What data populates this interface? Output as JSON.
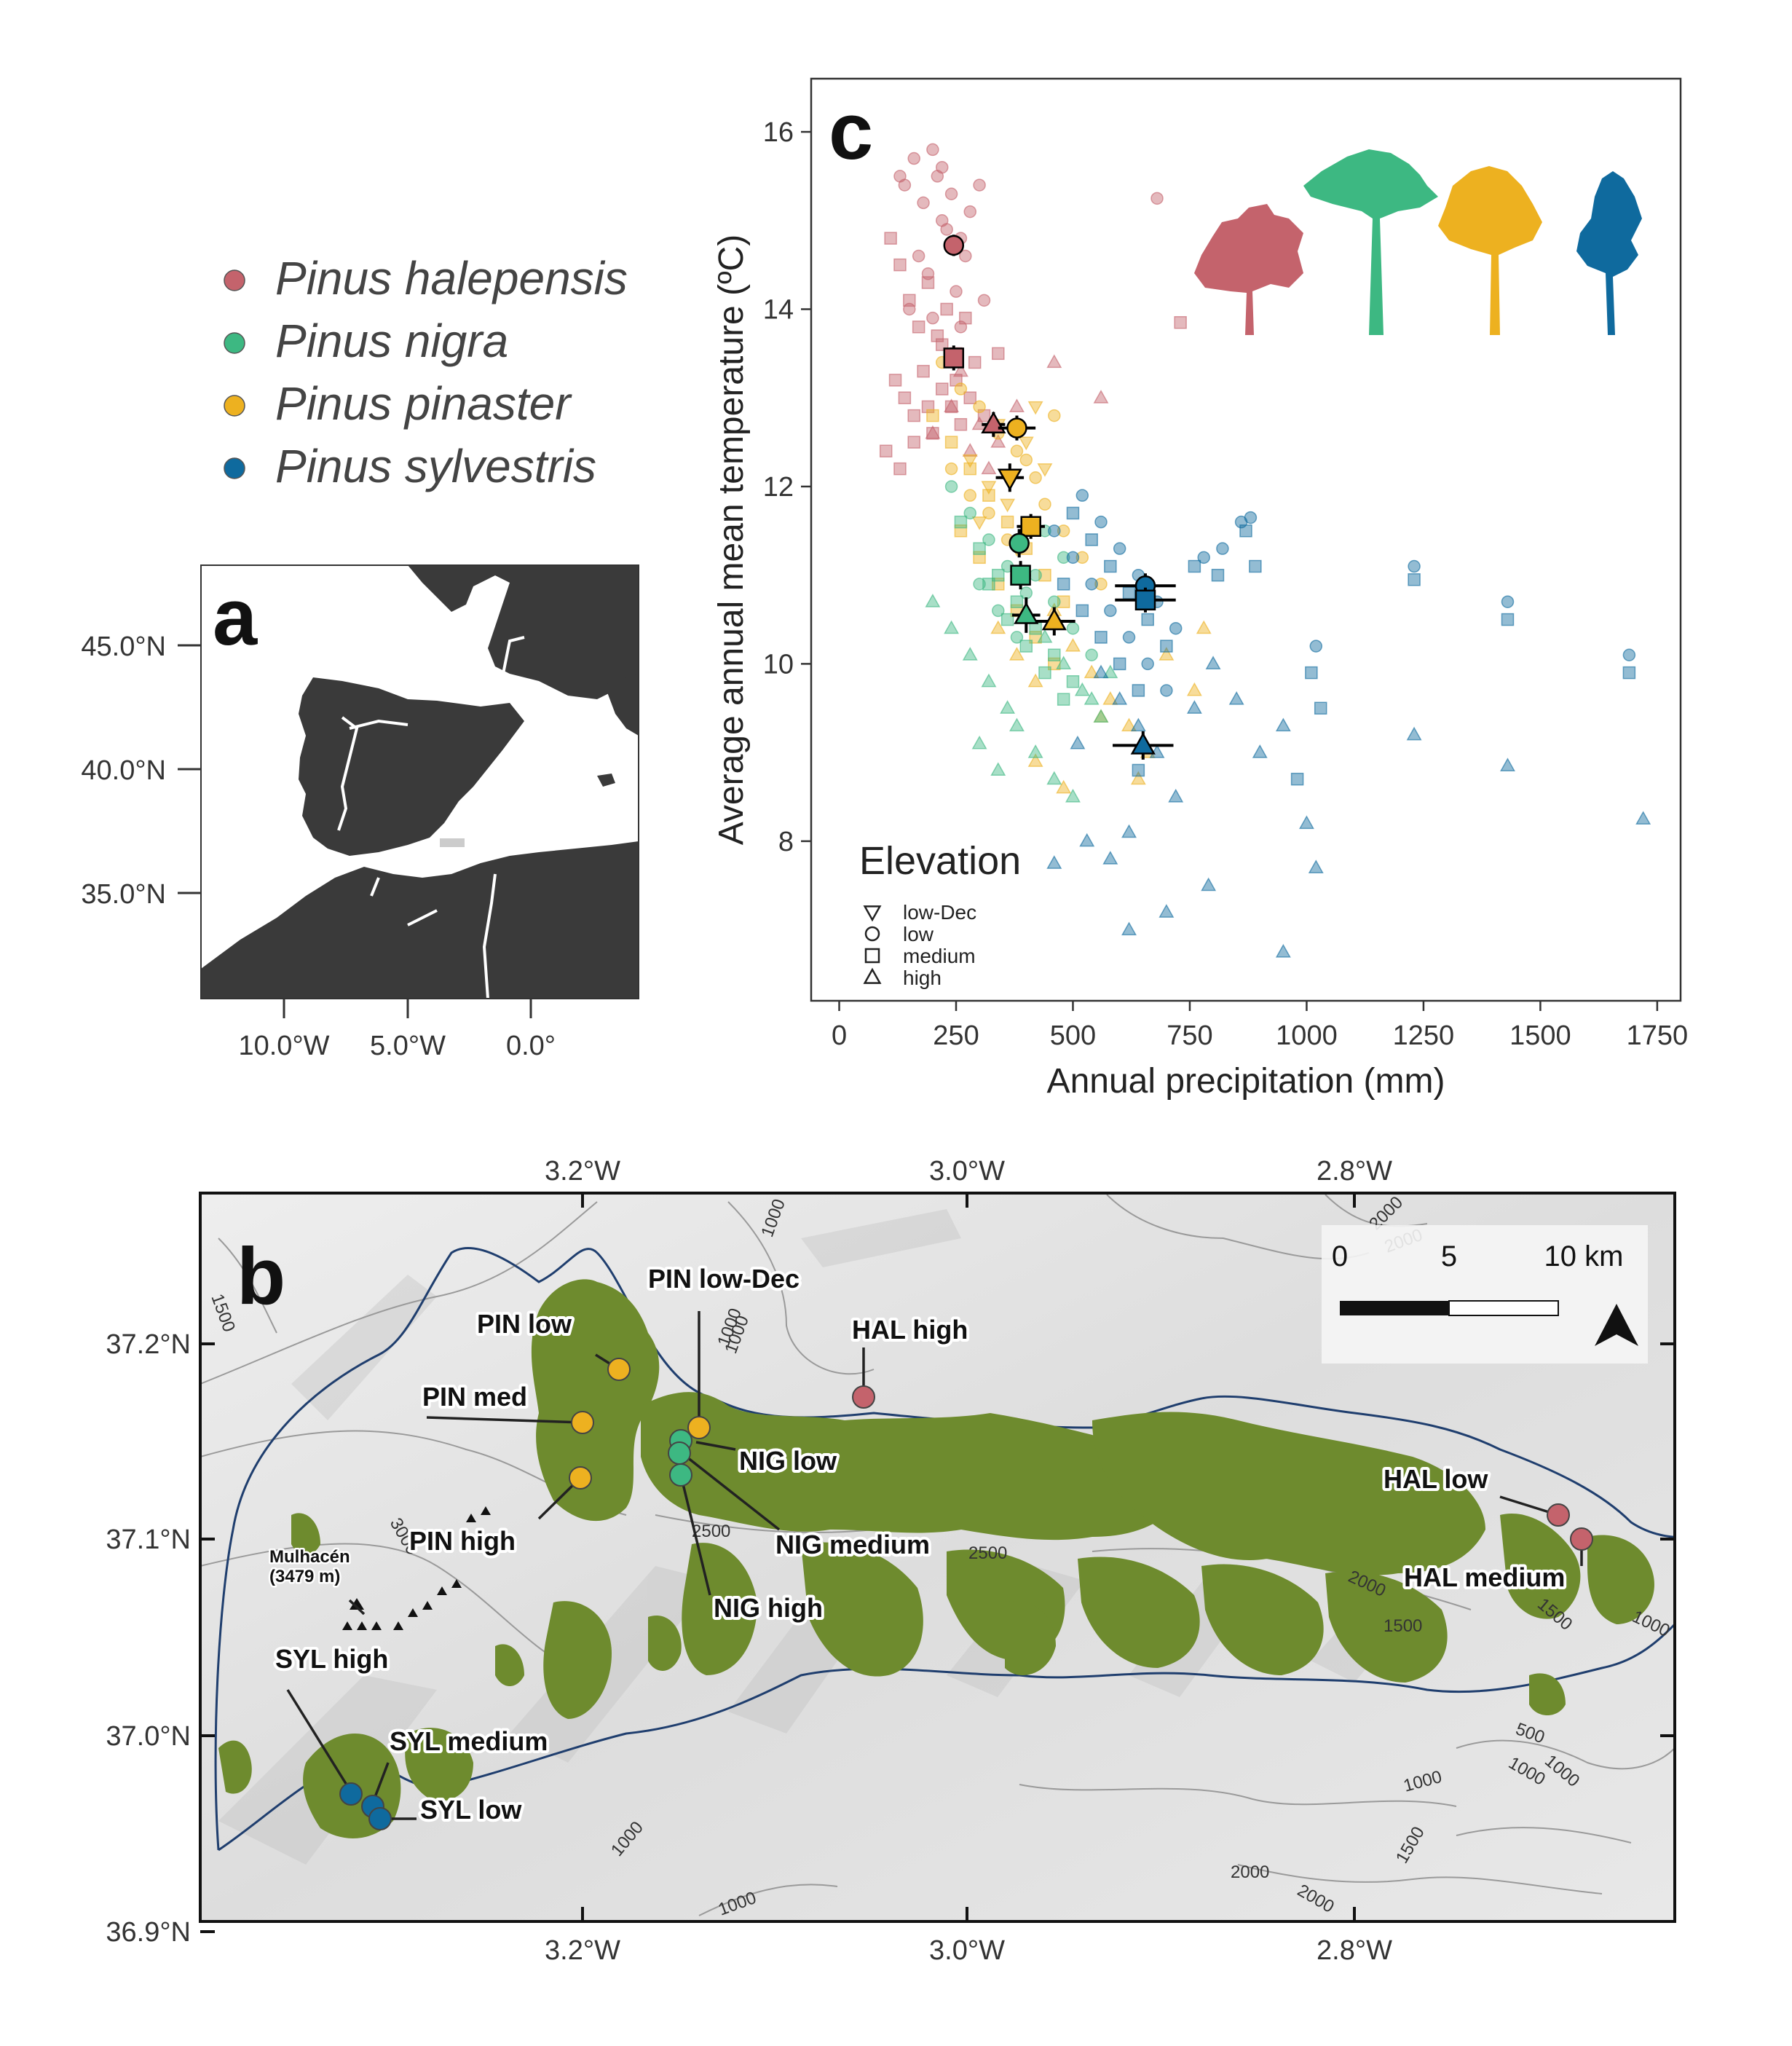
{
  "colors": {
    "halepensis": "#C4636C",
    "nigra": "#3DB882",
    "pinaster": "#EDB120",
    "sylvestris": "#0F6A9E",
    "land": "#3A3A3A",
    "forest": "#6E8B2E",
    "boundary": "#1F3E6E"
  },
  "legend": {
    "species": [
      {
        "name": "Pinus halepensis",
        "color": "#C4636C"
      },
      {
        "name": "Pinus nigra",
        "color": "#3DB882"
      },
      {
        "name": "Pinus pinaster",
        "color": "#EDB120"
      },
      {
        "name": "Pinus sylvestris",
        "color": "#0F6A9E"
      }
    ]
  },
  "panel_a": {
    "letter": "a",
    "y_ticks": [
      "45.0°N",
      "40.0°N",
      "35.0°N"
    ],
    "x_ticks": [
      "10.0°W",
      "5.0°W",
      "0.0°"
    ]
  },
  "panel_b": {
    "letter": "b",
    "x_ticks": [
      "3.2°W",
      "3.0°W",
      "2.8°W"
    ],
    "y_ticks": [
      "37.2°N",
      "37.1°N",
      "37.0°N",
      "36.9°N"
    ],
    "scalebar": {
      "labels": [
        "0",
        "5",
        "10 km"
      ]
    },
    "peak": {
      "name": "Mulhacén",
      "elevation": "(3479 m)"
    },
    "contour_labels": [
      "1000",
      "1000",
      "1500",
      "2000",
      "2000",
      "2500",
      "2500",
      "3000",
      "2000",
      "1500",
      "1500",
      "1000",
      "500",
      "1000",
      "1000",
      "1000",
      "1500",
      "2000",
      "2000",
      "1000",
      "1000",
      "1000"
    ],
    "sites": [
      {
        "label": "PIN low",
        "species": "pinaster"
      },
      {
        "label": "PIN low-Dec",
        "species": "pinaster"
      },
      {
        "label": "PIN med",
        "species": "pinaster"
      },
      {
        "label": "PIN high",
        "species": "pinaster"
      },
      {
        "label": "NIG low",
        "species": "nigra"
      },
      {
        "label": "NIG medium",
        "species": "nigra"
      },
      {
        "label": "NIG high",
        "species": "nigra"
      },
      {
        "label": "HAL high",
        "species": "halepensis"
      },
      {
        "label": "HAL low",
        "species": "halepensis"
      },
      {
        "label": "HAL medium",
        "species": "halepensis"
      },
      {
        "label": "SYL high",
        "species": "sylvestris"
      },
      {
        "label": "SYL medium",
        "species": "sylvestris"
      },
      {
        "label": "SYL low",
        "species": "sylvestris"
      }
    ]
  },
  "chart_data": {
    "type": "scatter",
    "letter": "c",
    "xlabel": "Annual precipitation (mm)",
    "ylabel": "Average annual mean temperature (ºC)",
    "xlim": [
      -60,
      1800
    ],
    "ylim": [
      6.2,
      16.6
    ],
    "x_ticks": [
      0,
      250,
      500,
      750,
      1000,
      1250,
      1500,
      1750
    ],
    "y_ticks": [
      8,
      10,
      12,
      14,
      16
    ],
    "grid": false,
    "legend": {
      "title": "Elevation",
      "position": "bottom-left",
      "entries": [
        {
          "shape": "triangle-down",
          "label": "low-Dec"
        },
        {
          "shape": "circle",
          "label": "low"
        },
        {
          "shape": "square",
          "label": "medium"
        },
        {
          "shape": "triangle-up",
          "label": "high"
        }
      ]
    },
    "means": [
      {
        "species": "halepensis",
        "elevation": "low",
        "x": 245,
        "y": 14.72,
        "xerr": 18,
        "yerr": 0.12
      },
      {
        "species": "halepensis",
        "elevation": "medium",
        "x": 245,
        "y": 13.45,
        "xerr": 20,
        "yerr": 0.14
      },
      {
        "species": "halepensis",
        "elevation": "high",
        "x": 330,
        "y": 12.7,
        "xerr": 25,
        "yerr": 0.14
      },
      {
        "species": "pinaster",
        "elevation": "low",
        "x": 380,
        "y": 12.66,
        "xerr": 40,
        "yerr": 0.14
      },
      {
        "species": "pinaster",
        "elevation": "low-Dec",
        "x": 365,
        "y": 12.1,
        "xerr": 30,
        "yerr": 0.16
      },
      {
        "species": "pinaster",
        "elevation": "medium",
        "x": 410,
        "y": 11.55,
        "xerr": 30,
        "yerr": 0.14
      },
      {
        "species": "pinaster",
        "elevation": "high",
        "x": 460,
        "y": 10.48,
        "xerr": 45,
        "yerr": 0.16
      },
      {
        "species": "nigra",
        "elevation": "low",
        "x": 385,
        "y": 11.36,
        "xerr": 20,
        "yerr": 0.16
      },
      {
        "species": "nigra",
        "elevation": "medium",
        "x": 388,
        "y": 11.0,
        "xerr": 22,
        "yerr": 0.16
      },
      {
        "species": "nigra",
        "elevation": "high",
        "x": 400,
        "y": 10.55,
        "xerr": 30,
        "yerr": 0.2
      },
      {
        "species": "sylvestris",
        "elevation": "low",
        "x": 655,
        "y": 10.88,
        "xerr": 65,
        "yerr": 0.14
      },
      {
        "species": "sylvestris",
        "elevation": "medium",
        "x": 655,
        "y": 10.72,
        "xerr": 65,
        "yerr": 0.14
      },
      {
        "species": "sylvestris",
        "elevation": "high",
        "x": 650,
        "y": 9.08,
        "xerr": 65,
        "yerr": 0.16
      }
    ],
    "points": [
      {
        "species": "halepensis",
        "shape": "circle",
        "x": [
          140,
          160,
          180,
          200,
          210,
          220,
          240,
          260,
          280,
          300,
          170,
          190,
          230,
          250,
          270,
          150,
          200,
          260,
          310,
          680,
          130,
          220
        ],
        "y": [
          15.4,
          15.7,
          15.2,
          15.8,
          15.5,
          15.0,
          15.3,
          14.8,
          15.1,
          15.4,
          14.6,
          14.4,
          14.9,
          14.2,
          14.6,
          14.0,
          13.9,
          13.8,
          14.1,
          15.25,
          15.5,
          15.6
        ]
      },
      {
        "species": "halepensis",
        "shape": "square",
        "x": [
          110,
          130,
          150,
          170,
          190,
          210,
          230,
          250,
          270,
          290,
          120,
          140,
          160,
          180,
          200,
          220,
          240,
          260,
          100,
          130,
          160,
          190,
          220,
          250,
          280,
          310,
          340,
          730
        ],
        "y": [
          14.8,
          14.5,
          14.1,
          13.8,
          14.3,
          13.7,
          14.0,
          13.5,
          13.9,
          13.4,
          13.2,
          13.0,
          12.8,
          13.3,
          12.6,
          13.1,
          12.9,
          12.7,
          12.4,
          12.2,
          12.5,
          12.9,
          13.6,
          13.2,
          13.0,
          12.8,
          13.5,
          13.85
        ]
      },
      {
        "species": "halepensis",
        "shape": "triangle-up",
        "x": [
          200,
          240,
          280,
          320,
          260,
          300,
          340,
          380,
          460,
          560
        ],
        "y": [
          12.6,
          12.9,
          12.4,
          12.2,
          13.3,
          12.7,
          12.5,
          12.9,
          13.4,
          13.0
        ]
      },
      {
        "species": "pinaster",
        "shape": "circle",
        "x": [
          220,
          260,
          300,
          340,
          380,
          420,
          460,
          240,
          280,
          320,
          360,
          400,
          440,
          480,
          520,
          560
        ],
        "y": [
          13.4,
          13.1,
          12.9,
          12.6,
          12.4,
          12.1,
          12.8,
          12.2,
          11.9,
          11.7,
          11.4,
          12.3,
          11.8,
          11.5,
          11.2,
          10.9
        ]
      },
      {
        "species": "pinaster",
        "shape": "triangle-down",
        "x": [
          280,
          320,
          360,
          400,
          440,
          300,
          340,
          380,
          420
        ],
        "y": [
          12.3,
          12.0,
          11.8,
          12.5,
          12.2,
          11.6,
          12.7,
          11.3,
          12.9
        ]
      },
      {
        "species": "pinaster",
        "shape": "square",
        "x": [
          200,
          240,
          280,
          320,
          360,
          400,
          440,
          480,
          260,
          300,
          340,
          380,
          420,
          460
        ],
        "y": [
          12.8,
          12.5,
          12.2,
          11.9,
          11.6,
          11.3,
          11.0,
          10.7,
          11.5,
          11.2,
          10.9,
          10.6,
          10.3,
          10.0
        ]
      },
      {
        "species": "pinaster",
        "shape": "triangle-up",
        "x": [
          340,
          380,
          420,
          460,
          500,
          540,
          580,
          620,
          660,
          700,
          760,
          420,
          480,
          560,
          640,
          780
        ],
        "y": [
          10.4,
          10.1,
          9.8,
          10.6,
          10.2,
          9.9,
          9.6,
          9.3,
          9.0,
          10.1,
          9.7,
          8.9,
          8.6,
          9.4,
          8.7,
          10.4
        ]
      },
      {
        "species": "nigra",
        "shape": "circle",
        "x": [
          240,
          280,
          320,
          360,
          400,
          440,
          480,
          300,
          340,
          380,
          420,
          460,
          500,
          540
        ],
        "y": [
          12.0,
          11.7,
          11.4,
          11.1,
          10.8,
          11.5,
          11.2,
          10.9,
          10.6,
          10.3,
          11.0,
          10.7,
          10.4,
          10.1
        ]
      },
      {
        "species": "nigra",
        "shape": "square",
        "x": [
          260,
          300,
          340,
          380,
          420,
          460,
          500,
          320,
          360,
          400,
          440,
          480
        ],
        "y": [
          11.6,
          11.3,
          11.0,
          10.7,
          10.4,
          10.1,
          9.8,
          10.9,
          10.5,
          10.2,
          9.9,
          9.6
        ]
      },
      {
        "species": "nigra",
        "shape": "triangle-up",
        "x": [
          200,
          240,
          280,
          320,
          360,
          400,
          440,
          480,
          520,
          560,
          300,
          340,
          380,
          420,
          460,
          500,
          540,
          580
        ],
        "y": [
          10.7,
          10.4,
          10.1,
          9.8,
          9.5,
          10.6,
          10.3,
          10.0,
          9.7,
          9.4,
          9.1,
          8.8,
          9.3,
          9.0,
          8.7,
          8.5,
          9.6,
          9.9
        ]
      },
      {
        "species": "sylvestris",
        "shape": "circle",
        "x": [
          520,
          560,
          600,
          640,
          680,
          720,
          780,
          820,
          860,
          880,
          1020,
          1230,
          1430,
          1690,
          460,
          500,
          540,
          580,
          620,
          660,
          700
        ],
        "y": [
          11.9,
          11.6,
          11.3,
          11.0,
          10.7,
          10.4,
          11.2,
          11.3,
          11.6,
          11.65,
          10.2,
          11.1,
          10.7,
          10.1,
          11.5,
          11.2,
          10.9,
          10.6,
          10.3,
          10.0,
          9.7
        ]
      },
      {
        "species": "sylvestris",
        "shape": "square",
        "x": [
          500,
          540,
          580,
          620,
          660,
          700,
          760,
          810,
          870,
          890,
          1010,
          1030,
          1230,
          1430,
          1690,
          480,
          520,
          560,
          600,
          640,
          980,
          640
        ],
        "y": [
          11.7,
          11.4,
          11.1,
          10.8,
          10.5,
          10.2,
          11.1,
          11.0,
          11.5,
          11.1,
          9.9,
          9.5,
          10.95,
          10.5,
          9.9,
          10.9,
          10.6,
          10.3,
          10.0,
          9.7,
          8.7,
          8.8
        ]
      },
      {
        "species": "sylvestris",
        "shape": "triangle-up",
        "x": [
          560,
          600,
          640,
          680,
          720,
          760,
          800,
          850,
          900,
          950,
          1000,
          1020,
          1230,
          1430,
          1720,
          530,
          580,
          620,
          700,
          790,
          950,
          620,
          510,
          460
        ],
        "y": [
          9.9,
          9.6,
          9.3,
          9.0,
          8.5,
          9.5,
          10.0,
          9.6,
          9.0,
          9.3,
          8.2,
          7.7,
          9.2,
          8.85,
          8.25,
          8.0,
          7.8,
          7.0,
          7.2,
          7.5,
          6.75,
          8.1,
          9.1,
          7.75
        ]
      }
    ]
  }
}
